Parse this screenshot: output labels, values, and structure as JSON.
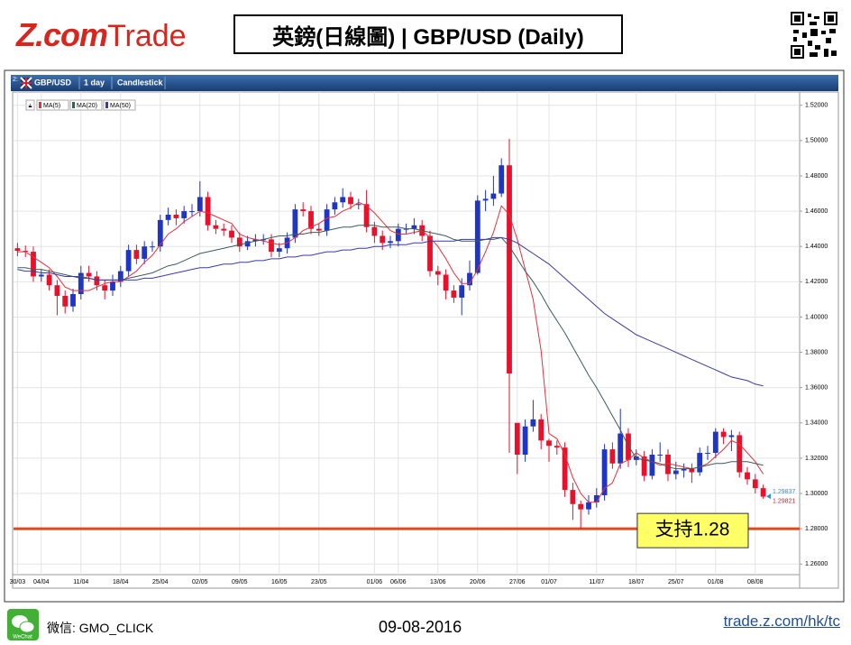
{
  "header": {
    "logo_z": "Z.com",
    "logo_trade": "Trade",
    "title": "英鎊(日線圖) | GBP/USD (Daily)"
  },
  "toolbar": {
    "panel_id": "2:",
    "symbol": "GBP/USD",
    "period": "1 day",
    "style": "Candlestick"
  },
  "chart_data": {
    "type": "candlestick",
    "categories": [
      "30/03",
      null,
      null,
      "04/04",
      null,
      null,
      null,
      null,
      "11/04",
      null,
      null,
      null,
      null,
      "18/04",
      null,
      null,
      null,
      null,
      "25/04",
      null,
      null,
      null,
      null,
      "02/05",
      null,
      null,
      null,
      null,
      "09/05",
      null,
      null,
      null,
      null,
      "16/05",
      null,
      null,
      null,
      null,
      "23/05",
      null,
      null,
      null,
      null,
      null,
      null,
      "01/06",
      null,
      null,
      "06/06",
      null,
      null,
      null,
      null,
      "13/06",
      null,
      null,
      null,
      null,
      "20/06",
      null,
      null,
      null,
      null,
      "27/06",
      null,
      null,
      null,
      "01/07",
      null,
      null,
      null,
      null,
      null,
      "11/07",
      null,
      null,
      null,
      null,
      "18/07",
      null,
      null,
      null,
      null,
      "25/07",
      null,
      null,
      null,
      null,
      "01/08",
      null,
      null,
      null,
      null,
      "08/08",
      null
    ],
    "open": [
      1.439,
      1.4375,
      1.437,
      1.423,
      1.424,
      1.418,
      1.412,
      1.406,
      1.413,
      1.425,
      1.423,
      1.418,
      1.415,
      1.42,
      1.426,
      1.438,
      1.433,
      1.44,
      1.44,
      1.455,
      1.458,
      1.456,
      1.46,
      1.46,
      1.468,
      1.452,
      1.45,
      1.449,
      1.445,
      1.44,
      1.443,
      1.444,
      1.444,
      1.437,
      1.439,
      1.445,
      1.461,
      1.46,
      1.45,
      1.449,
      1.461,
      1.465,
      1.468,
      1.464,
      1.464,
      1.451,
      1.446,
      1.442,
      1.443,
      1.45,
      1.45,
      1.452,
      1.446,
      1.426,
      1.424,
      1.415,
      1.411,
      1.418,
      1.425,
      1.466,
      1.467,
      1.47,
      1.486,
      1.34,
      1.322,
      1.338,
      1.342,
      1.33,
      1.327,
      1.326,
      1.302,
      1.294,
      1.291,
      1.295,
      1.299,
      1.325,
      1.317,
      1.334,
      1.319,
      1.321,
      1.31,
      1.322,
      1.322,
      1.311,
      1.313,
      1.314,
      1.312,
      1.323,
      1.323,
      1.335,
      1.332,
      1.333,
      1.312,
      1.308,
      1.303
    ],
    "high": [
      1.442,
      1.4405,
      1.44,
      1.427,
      1.427,
      1.421,
      1.415,
      1.416,
      1.429,
      1.429,
      1.426,
      1.421,
      1.424,
      1.429,
      1.441,
      1.441,
      1.443,
      1.443,
      1.458,
      1.462,
      1.461,
      1.463,
      1.464,
      1.477,
      1.471,
      1.455,
      1.453,
      1.452,
      1.448,
      1.446,
      1.447,
      1.447,
      1.447,
      1.442,
      1.448,
      1.464,
      1.465,
      1.463,
      1.453,
      1.464,
      1.468,
      1.473,
      1.471,
      1.467,
      1.472,
      1.454,
      1.449,
      1.446,
      1.453,
      1.453,
      1.456,
      1.455,
      1.449,
      1.429,
      1.427,
      1.418,
      1.422,
      1.432,
      1.469,
      1.472,
      1.48,
      1.49,
      1.501,
      1.34,
      1.342,
      1.353,
      1.345,
      1.331,
      1.33,
      1.329,
      1.306,
      1.296,
      1.299,
      1.303,
      1.328,
      1.329,
      1.348,
      1.337,
      1.325,
      1.324,
      1.325,
      1.329,
      1.325,
      1.318,
      1.317,
      1.317,
      1.326,
      1.327,
      1.337,
      1.337,
      1.336,
      1.335,
      1.315,
      1.311,
      1.305
    ],
    "low": [
      1.4345,
      1.434,
      1.42,
      1.42,
      1.415,
      1.401,
      1.402,
      1.403,
      1.41,
      1.42,
      1.415,
      1.41,
      1.412,
      1.417,
      1.423,
      1.43,
      1.43,
      1.437,
      1.437,
      1.452,
      1.452,
      1.453,
      1.457,
      1.457,
      1.449,
      1.447,
      1.446,
      1.442,
      1.437,
      1.438,
      1.44,
      1.441,
      1.434,
      1.434,
      1.436,
      1.442,
      1.457,
      1.447,
      1.446,
      1.446,
      1.458,
      1.462,
      1.461,
      1.461,
      1.448,
      1.442,
      1.438,
      1.439,
      1.44,
      1.447,
      1.447,
      1.443,
      1.423,
      1.418,
      1.41,
      1.408,
      1.401,
      1.415,
      1.424,
      1.46,
      1.463,
      1.468,
      1.323,
      1.311,
      1.318,
      1.335,
      1.325,
      1.318,
      1.322,
      1.298,
      1.285,
      1.28,
      1.288,
      1.292,
      1.296,
      1.314,
      1.314,
      1.315,
      1.316,
      1.307,
      1.308,
      1.318,
      1.307,
      1.308,
      1.309,
      1.306,
      1.31,
      1.319,
      1.32,
      1.328,
      1.324,
      1.309,
      1.305,
      1.3,
      1.297
    ],
    "close": [
      1.4375,
      1.437,
      1.423,
      1.424,
      1.418,
      1.412,
      1.406,
      1.413,
      1.425,
      1.423,
      1.418,
      1.415,
      1.42,
      1.426,
      1.438,
      1.433,
      1.44,
      1.44,
      1.455,
      1.458,
      1.456,
      1.46,
      1.46,
      1.468,
      1.452,
      1.45,
      1.449,
      1.445,
      1.44,
      1.443,
      1.444,
      1.444,
      1.437,
      1.439,
      1.445,
      1.461,
      1.46,
      1.45,
      1.449,
      1.461,
      1.465,
      1.468,
      1.464,
      1.464,
      1.451,
      1.446,
      1.442,
      1.443,
      1.45,
      1.45,
      1.452,
      1.446,
      1.426,
      1.424,
      1.415,
      1.411,
      1.418,
      1.425,
      1.466,
      1.467,
      1.47,
      1.486,
      1.368,
      1.322,
      1.338,
      1.342,
      1.33,
      1.327,
      1.326,
      1.302,
      1.294,
      1.291,
      1.295,
      1.299,
      1.325,
      1.317,
      1.334,
      1.319,
      1.321,
      1.31,
      1.322,
      1.322,
      1.311,
      1.313,
      1.314,
      1.312,
      1.323,
      1.323,
      1.335,
      1.332,
      1.333,
      1.312,
      1.308,
      1.303,
      1.2982
    ],
    "up_color": "#1f35c4",
    "down_color": "#e8102a",
    "series": [
      {
        "name": "MA(5)",
        "color": "#e8303a",
        "values": [
          1.437,
          1.437,
          1.434,
          1.431,
          1.428,
          1.423,
          1.417,
          1.415,
          1.415,
          1.415,
          1.417,
          1.419,
          1.42,
          1.42,
          1.423,
          1.426,
          1.431,
          1.435,
          1.441,
          1.447,
          1.45,
          1.454,
          1.457,
          1.46,
          1.459,
          1.457,
          1.455,
          1.453,
          1.447,
          1.445,
          1.444,
          1.443,
          1.442,
          1.441,
          1.442,
          1.445,
          1.449,
          1.451,
          1.453,
          1.456,
          1.457,
          1.46,
          1.462,
          1.465,
          1.463,
          1.459,
          1.454,
          1.449,
          1.447,
          1.447,
          1.448,
          1.449,
          1.445,
          1.44,
          1.433,
          1.425,
          1.419,
          1.419,
          1.427,
          1.437,
          1.448,
          1.463,
          1.458,
          1.444,
          1.427,
          1.41,
          1.381,
          1.334,
          1.331,
          1.322,
          1.309,
          1.3,
          1.295,
          1.295,
          1.303,
          1.306,
          1.317,
          1.319,
          1.323,
          1.32,
          1.318,
          1.316,
          1.317,
          1.316,
          1.315,
          1.314,
          1.315,
          1.317,
          1.321,
          1.325,
          1.33,
          1.328,
          1.323,
          1.318,
          1.311
        ]
      },
      {
        "name": "MA(20)",
        "color": "#3d5c5c",
        "values": [
          1.428,
          1.428,
          1.427,
          1.427,
          1.426,
          1.425,
          1.424,
          1.423,
          1.423,
          1.422,
          1.421,
          1.421,
          1.421,
          1.421,
          1.422,
          1.423,
          1.424,
          1.425,
          1.427,
          1.429,
          1.43,
          1.432,
          1.434,
          1.436,
          1.437,
          1.438,
          1.439,
          1.44,
          1.441,
          1.442,
          1.443,
          1.444,
          1.445,
          1.446,
          1.446,
          1.447,
          1.447,
          1.448,
          1.448,
          1.449,
          1.45,
          1.451,
          1.451,
          1.452,
          1.452,
          1.452,
          1.451,
          1.451,
          1.451,
          1.45,
          1.45,
          1.449,
          1.448,
          1.447,
          1.446,
          1.444,
          1.443,
          1.443,
          1.443,
          1.444,
          1.444,
          1.445,
          1.44,
          1.433,
          1.426,
          1.42,
          1.413,
          1.405,
          1.398,
          1.391,
          1.383,
          1.375,
          1.367,
          1.36,
          1.352,
          1.344,
          1.336,
          1.327,
          1.32,
          1.319,
          1.318,
          1.317,
          1.315,
          1.314,
          1.314,
          1.314,
          1.315,
          1.316,
          1.317,
          1.317,
          1.318,
          1.318,
          1.318,
          1.317,
          1.316
        ]
      },
      {
        "name": "MA(50)",
        "color": "#3a3aa8",
        "values": [
          1.427,
          1.426,
          1.426,
          1.425,
          1.425,
          1.424,
          1.423,
          1.423,
          1.422,
          1.422,
          1.421,
          1.421,
          1.421,
          1.421,
          1.421,
          1.421,
          1.422,
          1.422,
          1.423,
          1.424,
          1.425,
          1.426,
          1.427,
          1.428,
          1.428,
          1.429,
          1.43,
          1.43,
          1.431,
          1.431,
          1.432,
          1.432,
          1.433,
          1.433,
          1.434,
          1.434,
          1.435,
          1.435,
          1.436,
          1.437,
          1.437,
          1.438,
          1.438,
          1.439,
          1.439,
          1.44,
          1.44,
          1.441,
          1.441,
          1.441,
          1.442,
          1.442,
          1.443,
          1.443,
          1.443,
          1.443,
          1.444,
          1.444,
          1.444,
          1.444,
          1.445,
          1.445,
          1.444,
          1.442,
          1.439,
          1.436,
          1.433,
          1.43,
          1.426,
          1.422,
          1.418,
          1.414,
          1.41,
          1.406,
          1.402,
          1.399,
          1.396,
          1.393,
          1.39,
          1.388,
          1.386,
          1.384,
          1.382,
          1.38,
          1.378,
          1.376,
          1.374,
          1.372,
          1.37,
          1.368,
          1.366,
          1.365,
          1.364,
          1.362,
          1.361
        ]
      }
    ],
    "ylim": [
      1.254,
      1.526
    ],
    "yticks": [
      {
        "value": 1.26,
        "label": "1.26000"
      },
      {
        "value": 1.28,
        "label": "1.28000"
      },
      {
        "value": 1.3,
        "label": "1.30000"
      },
      {
        "value": 1.32,
        "label": "1.32000"
      },
      {
        "value": 1.34,
        "label": "1.34000"
      },
      {
        "value": 1.36,
        "label": "1.36000"
      },
      {
        "value": 1.38,
        "label": "1.38000"
      },
      {
        "value": 1.4,
        "label": "1.40000"
      },
      {
        "value": 1.42,
        "label": "1.42000"
      },
      {
        "value": 1.44,
        "label": "1.44000"
      },
      {
        "value": 1.46,
        "label": "1.46000"
      },
      {
        "value": 1.48,
        "label": "1.48000"
      },
      {
        "value": 1.5,
        "label": "1.50000"
      },
      {
        "value": 1.52,
        "label": "1.52000"
      }
    ],
    "grid": true,
    "price_tags": [
      {
        "value": 1.29837,
        "color": "#2a8fd0"
      },
      {
        "value": 1.29821,
        "color": "#e8102a"
      }
    ],
    "support": {
      "value": 1.28,
      "label": "支持1.28",
      "color": "#e0491b"
    }
  },
  "footer": {
    "wechat": "微信: GMO_CLICK",
    "date": "09-08-2016",
    "url": "trade.z.com/hk/tc"
  }
}
